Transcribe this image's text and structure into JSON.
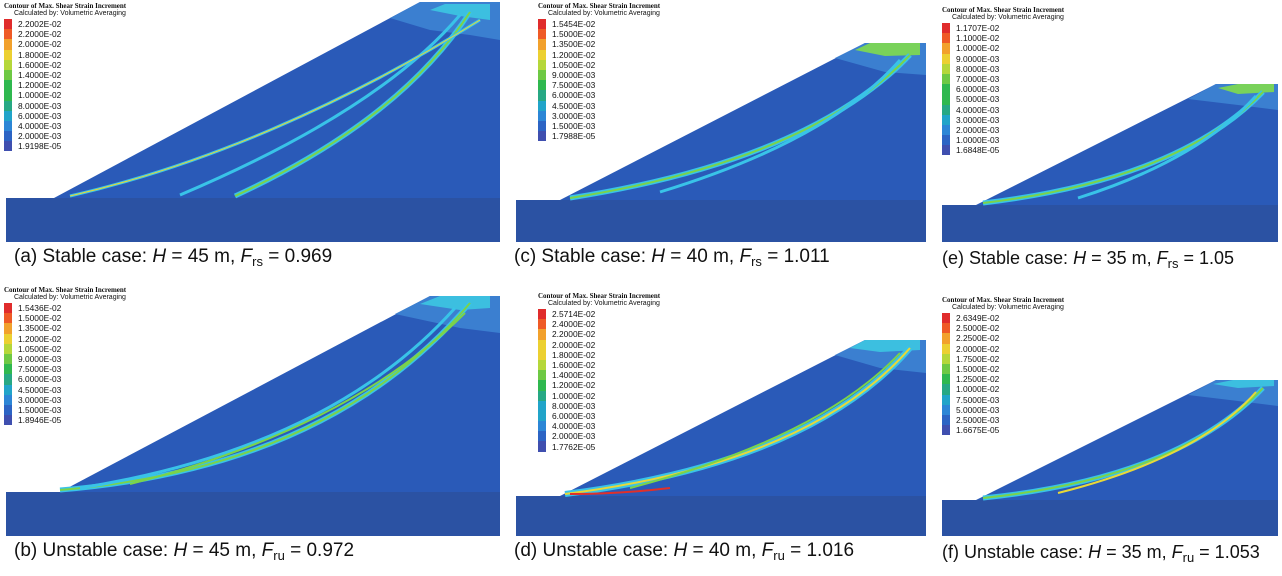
{
  "legend_title": "Contour of Max. Shear Strain Increment",
  "legend_subtitle": "Calculated by: Volumetric Averaging",
  "colors": {
    "base": "#2b52a3",
    "soil": "#2a5ab8",
    "soil_light": "#3b7fd0",
    "crest_cyan": "#3cbfe0",
    "crest_green": "#79d25a",
    "band_cyan": "#39c3e8",
    "band_green": "#7bd34a",
    "band_yellow": "#e8d838",
    "band_red": "#e0302a"
  },
  "legend_colors": [
    "#e02c2c",
    "#ef5a26",
    "#f2a12c",
    "#ecd031",
    "#b5d73a",
    "#6ec944",
    "#2fb84f",
    "#27a884",
    "#21a4c9",
    "#2c86d6",
    "#2c64c4",
    "#3f4faf"
  ],
  "panels": [
    {
      "id": "a",
      "legend": [
        "2.2002E-02",
        "2.2000E-02",
        "2.0000E-02",
        "1.8000E-02",
        "1.6000E-02",
        "1.4000E-02",
        "1.2000E-02",
        "1.0000E-02",
        "8.0000E-03",
        "6.0000E-03",
        "4.0000E-03",
        "2.0000E-03",
        "1.9198E-05"
      ],
      "caption": {
        "prefix": "(a) Stable case: ",
        "H_sym": "H",
        "H_text": " = 45 m, ",
        "F_sym": "F",
        "F_sub": "rs",
        "F_val": " = 0.969"
      }
    },
    {
      "id": "b",
      "legend": [
        "1.5436E-02",
        "1.5000E-02",
        "1.3500E-02",
        "1.2000E-02",
        "1.0500E-02",
        "9.0000E-03",
        "7.5000E-03",
        "6.0000E-03",
        "4.5000E-03",
        "3.0000E-03",
        "1.5000E-03",
        "1.8946E-05"
      ],
      "caption": {
        "prefix": "(b) Unstable case: ",
        "H_sym": "H",
        "H_text": " = 45 m, ",
        "F_sym": "F",
        "F_sub": "ru",
        "F_val": " = 0.972"
      }
    },
    {
      "id": "c",
      "legend": [
        "1.5454E-02",
        "1.5000E-02",
        "1.3500E-02",
        "1.2000E-02",
        "1.0500E-02",
        "9.0000E-03",
        "7.5000E-03",
        "6.0000E-03",
        "4.5000E-03",
        "3.0000E-03",
        "1.5000E-03",
        "1.7988E-05"
      ],
      "caption": {
        "prefix": "(c) Stable case: ",
        "H_sym": "H",
        "H_text": " = 40 m, ",
        "F_sym": "F",
        "F_sub": "rs",
        "F_val": " = 1.011"
      }
    },
    {
      "id": "d",
      "legend": [
        "2.5714E-02",
        "2.4000E-02",
        "2.2000E-02",
        "2.0000E-02",
        "1.8000E-02",
        "1.6000E-02",
        "1.4000E-02",
        "1.2000E-02",
        "1.0000E-02",
        "8.0000E-03",
        "6.0000E-03",
        "4.0000E-03",
        "2.0000E-03",
        "1.7762E-05"
      ],
      "caption": {
        "prefix": "(d) Unstable case: ",
        "H_sym": "H",
        "H_text": " = 40 m, ",
        "F_sym": "F",
        "F_sub": "ru",
        "F_val": " = 1.016"
      }
    },
    {
      "id": "e",
      "legend": [
        "1.1707E-02",
        "1.1000E-02",
        "1.0000E-02",
        "9.0000E-03",
        "8.0000E-03",
        "7.0000E-03",
        "6.0000E-03",
        "5.0000E-03",
        "4.0000E-03",
        "3.0000E-03",
        "2.0000E-03",
        "1.0000E-03",
        "1.6848E-05"
      ],
      "caption": {
        "prefix": "(e) Stable case: ",
        "H_sym": "H",
        "H_text": " = 35 m, ",
        "F_sym": "F",
        "F_sub": "rs",
        "F_val": " = 1.05"
      }
    },
    {
      "id": "f",
      "legend": [
        "2.6349E-02",
        "2.5000E-02",
        "2.2500E-02",
        "2.0000E-02",
        "1.7500E-02",
        "1.5000E-02",
        "1.2500E-02",
        "1.0000E-02",
        "7.5000E-03",
        "5.0000E-03",
        "2.5000E-03",
        "1.6675E-05"
      ],
      "caption": {
        "prefix": "(f) Unstable case: ",
        "H_sym": "H",
        "H_text": " = 35 m, ",
        "F_sym": "F",
        "F_sub": "ru",
        "F_val": " = 1.053"
      }
    }
  ]
}
